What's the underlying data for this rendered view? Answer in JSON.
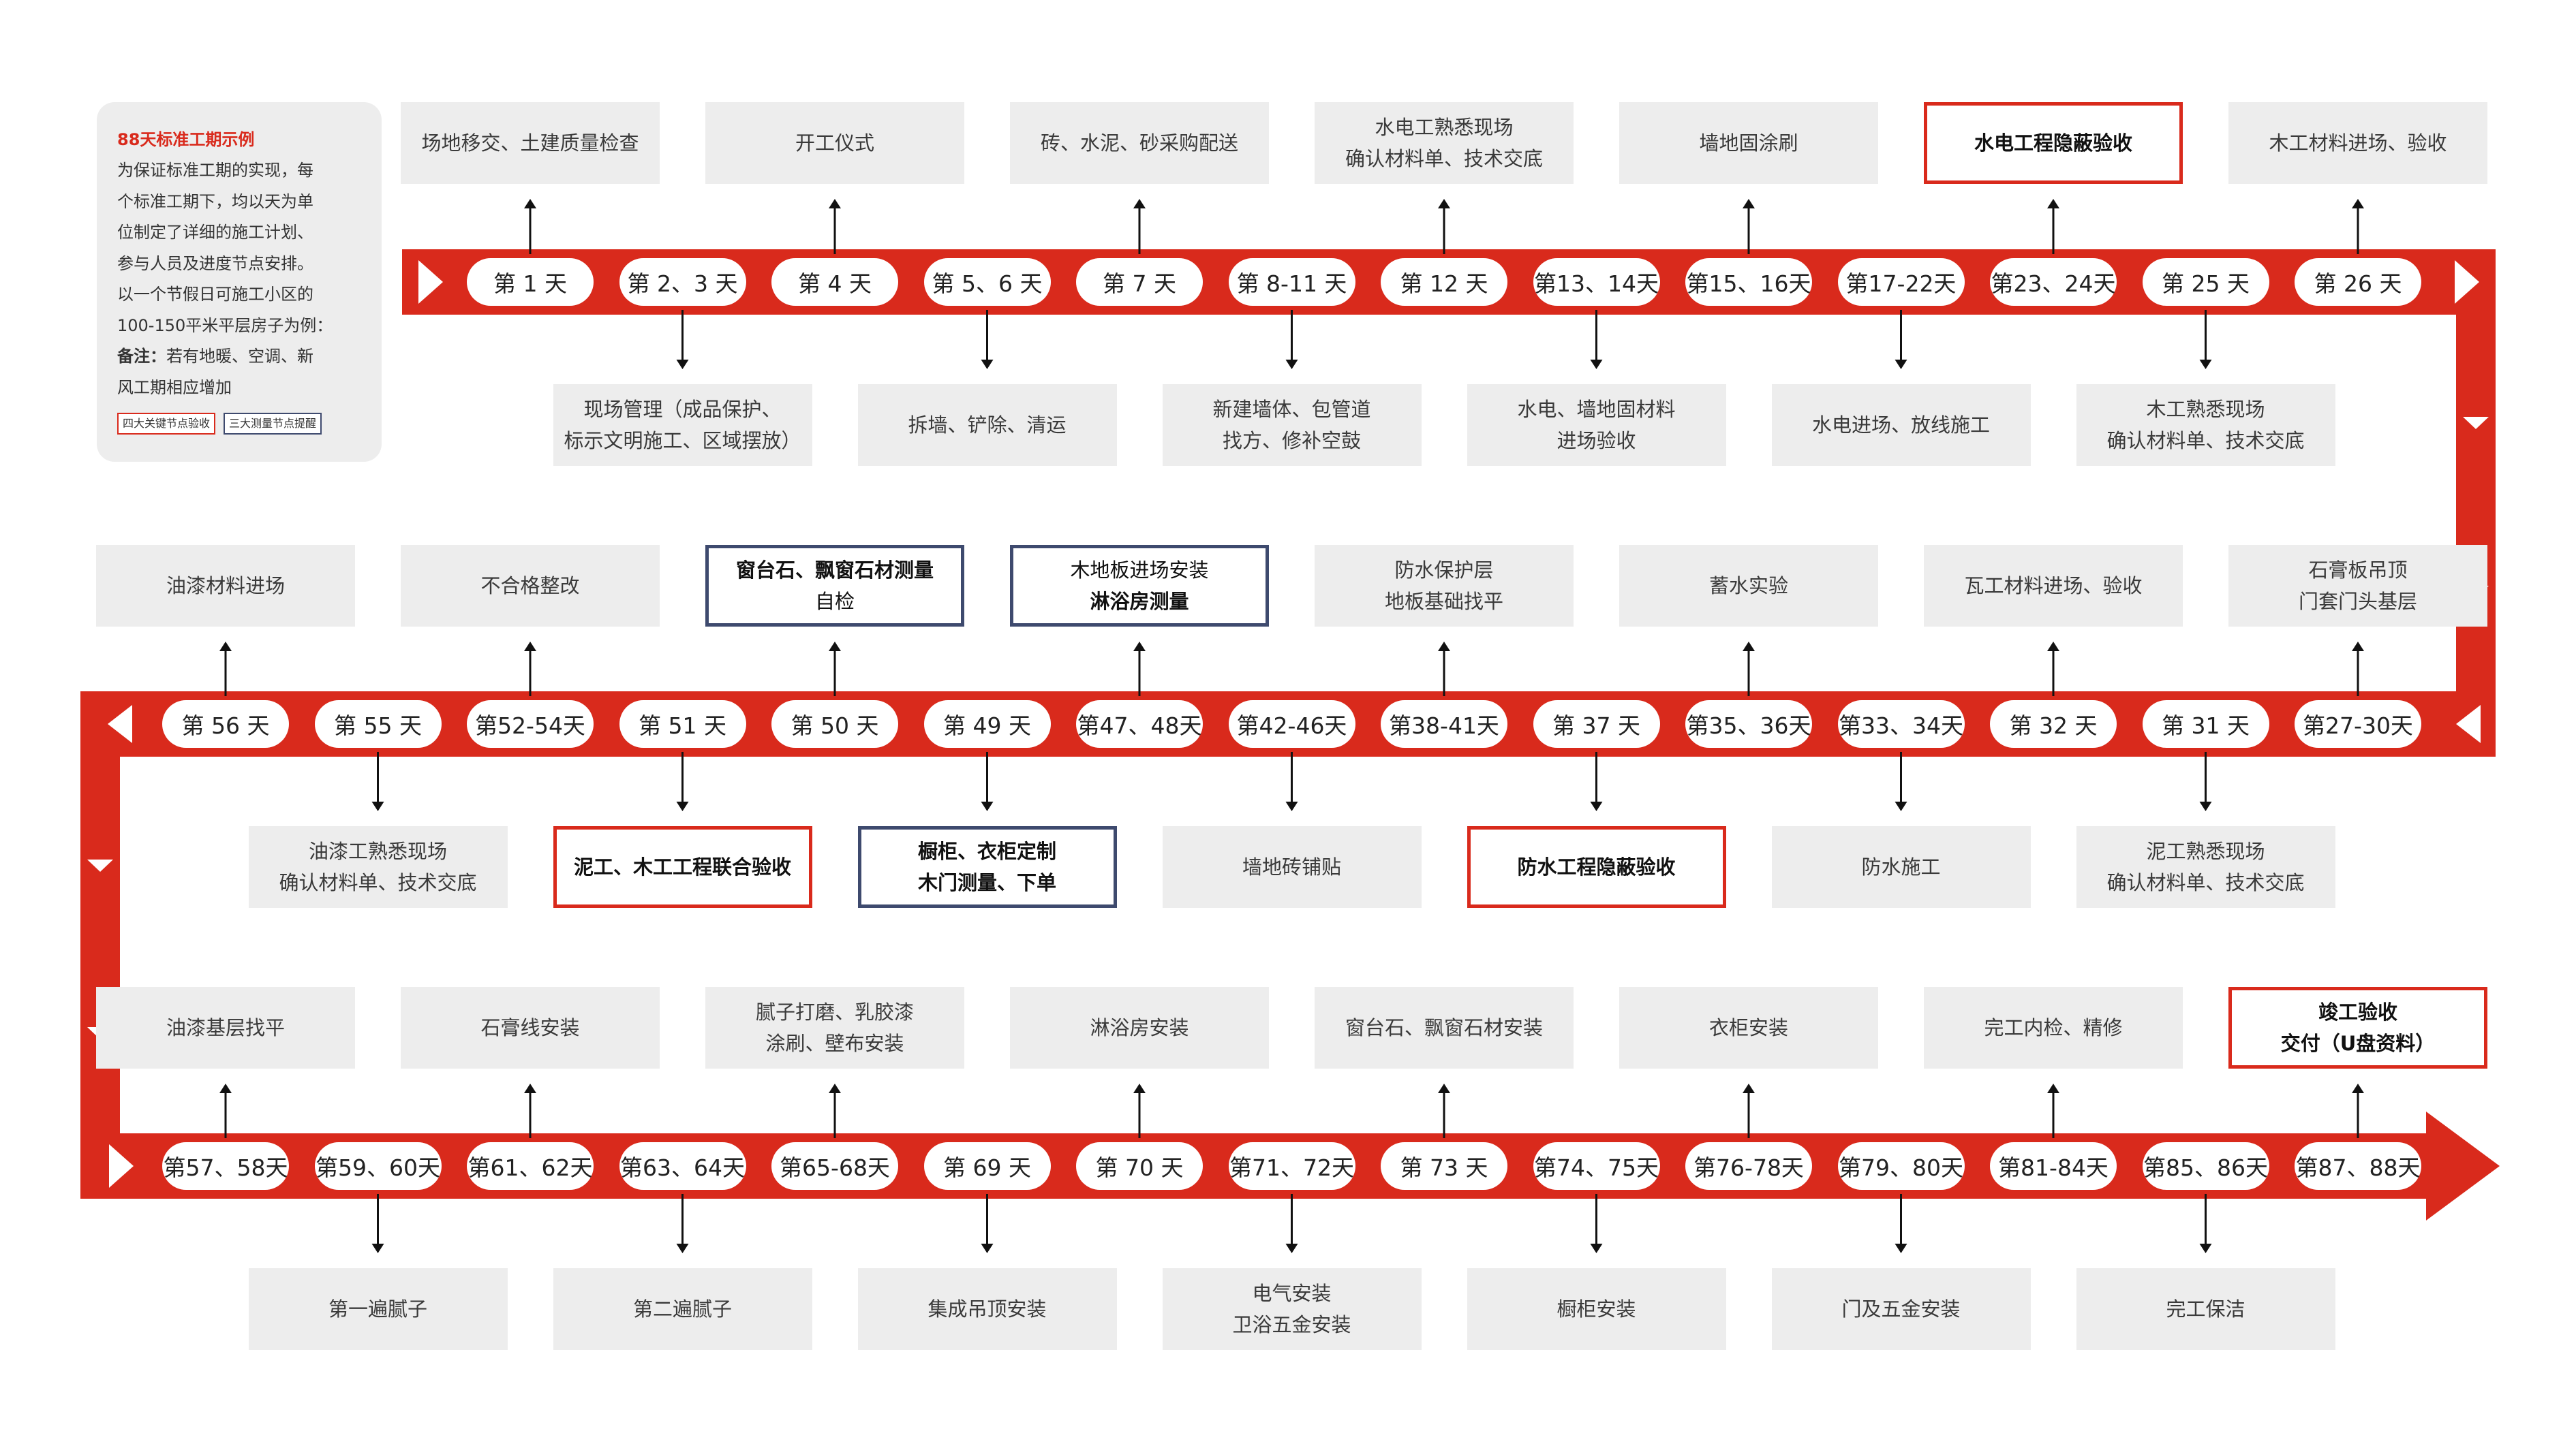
{
  "legend": {
    "title": "88天标准工期示例",
    "body": "为保证标准工期的实现，每\n个标准工期下，均以天为单\n位制定了详细的施工计划、\n参与人员及进度节点安排。\n以一个节假日可施工小区的\n100-150平米平层房子为例：",
    "note_label": "备注：",
    "note_text": "若有地暖、空调、新\n风工期相应增加",
    "tag_key": "四大关键节点验收",
    "tag_measure": "三大测量节点提醒"
  },
  "colors": {
    "track": "#d92a1c",
    "key_border": "#d92a1c",
    "measure_border": "#3e4a6e",
    "task_bg": "#ededed"
  },
  "rows": [
    {
      "direction": "right",
      "days": [
        "第 1 天",
        "第 2、3 天",
        "第 4 天",
        "第 5、6 天",
        "第 7 天",
        "第 8-11 天",
        "第 12 天",
        "第13、14天",
        "第15、16天",
        "第17-22天",
        "第23、24天",
        "第 25 天",
        "第 26 天"
      ],
      "above": [
        {
          "text": "场地移交、土建质量检查",
          "type": "normal"
        },
        {
          "text": "开工仪式",
          "type": "normal"
        },
        {
          "text": "砖、水泥、砂采购配送",
          "type": "normal"
        },
        {
          "text": "水电工熟悉现场\n确认材料单、技术交底",
          "type": "normal"
        },
        {
          "text": "墙地固涂刷",
          "type": "normal"
        },
        {
          "text": "水电工程隐蔽验收",
          "type": "key"
        },
        {
          "text": "木工材料进场、验收",
          "type": "normal"
        }
      ],
      "below": [
        {
          "text": "现场管理（成品保护、\n标示文明施工、区域摆放）",
          "type": "normal"
        },
        {
          "text": "拆墙、铲除、清运",
          "type": "normal"
        },
        {
          "text": "新建墙体、包管道\n找方、修补空鼓",
          "type": "normal"
        },
        {
          "text": "水电、墙地固材料\n进场验收",
          "type": "normal"
        },
        {
          "text": "水电进场、放线施工",
          "type": "normal"
        },
        {
          "text": "木工熟悉现场\n确认材料单、技术交底",
          "type": "normal"
        }
      ]
    },
    {
      "direction": "left",
      "days": [
        "第 56 天",
        "第 55 天",
        "第52-54天",
        "第 51 天",
        "第 50 天",
        "第 49 天",
        "第47、48天",
        "第42-46天",
        "第38-41天",
        "第 37 天",
        "第35、36天",
        "第33、34天",
        "第 32 天",
        "第 31 天",
        "第27-30天"
      ],
      "above": [
        {
          "text": "油漆材料进场",
          "type": "normal"
        },
        {
          "text": "不合格整改",
          "type": "normal"
        },
        {
          "text": "窗台石、飘窗石材测量",
          "sub": "自检",
          "type": "measure",
          "bold": "line1"
        },
        {
          "text": "木地板进场安装",
          "sub": "淋浴房测量",
          "type": "measure",
          "bold": "line2"
        },
        {
          "text": "防水保护层\n地板基础找平",
          "type": "normal"
        },
        {
          "text": "蓄水实验",
          "type": "normal"
        },
        {
          "text": "瓦工材料进场、验收",
          "type": "normal"
        },
        {
          "text": "石膏板吊顶\n门套门头基层",
          "type": "normal"
        }
      ],
      "below": [
        {
          "text": "油漆工熟悉现场\n确认材料单、技术交底",
          "type": "normal"
        },
        {
          "text": "泥工、木工工程联合验收",
          "type": "key"
        },
        {
          "text": "橱柜、衣柜定制",
          "sub": "木门测量、下单",
          "type": "measure",
          "bold": "both"
        },
        {
          "text": "墙地砖铺贴",
          "type": "normal"
        },
        {
          "text": "防水工程隐蔽验收",
          "type": "key"
        },
        {
          "text": "防水施工",
          "type": "normal"
        },
        {
          "text": "泥工熟悉现场\n确认材料单、技术交底",
          "type": "normal"
        }
      ]
    },
    {
      "direction": "right",
      "days": [
        "第57、58天",
        "第59、60天",
        "第61、62天",
        "第63、64天",
        "第65-68天",
        "第 69 天",
        "第 70 天",
        "第71、72天",
        "第 73 天",
        "第74、75天",
        "第76-78天",
        "第79、80天",
        "第81-84天",
        "第85、86天",
        "第87、88天"
      ],
      "above": [
        {
          "text": "油漆基层找平",
          "type": "normal"
        },
        {
          "text": "石膏线安装",
          "type": "normal"
        },
        {
          "text": "腻子打磨、乳胶漆\n涂刷、壁布安装",
          "type": "normal"
        },
        {
          "text": "淋浴房安装",
          "type": "normal"
        },
        {
          "text": "窗台石、飘窗石材安装",
          "type": "normal"
        },
        {
          "text": "衣柜安装",
          "type": "normal"
        },
        {
          "text": "完工内检、精修",
          "type": "normal"
        },
        {
          "text": "竣工验收\n交付（U盘资料）",
          "type": "key"
        }
      ],
      "below": [
        {
          "text": "第一遍腻子",
          "type": "normal"
        },
        {
          "text": "第二遍腻子",
          "type": "normal"
        },
        {
          "text": "集成吊顶安装",
          "type": "normal"
        },
        {
          "text": "电气安装\n卫浴五金安装",
          "type": "normal"
        },
        {
          "text": "橱柜安装",
          "type": "normal"
        },
        {
          "text": "门及五金安装",
          "type": "normal"
        },
        {
          "text": "完工保洁",
          "type": "normal"
        }
      ]
    }
  ]
}
